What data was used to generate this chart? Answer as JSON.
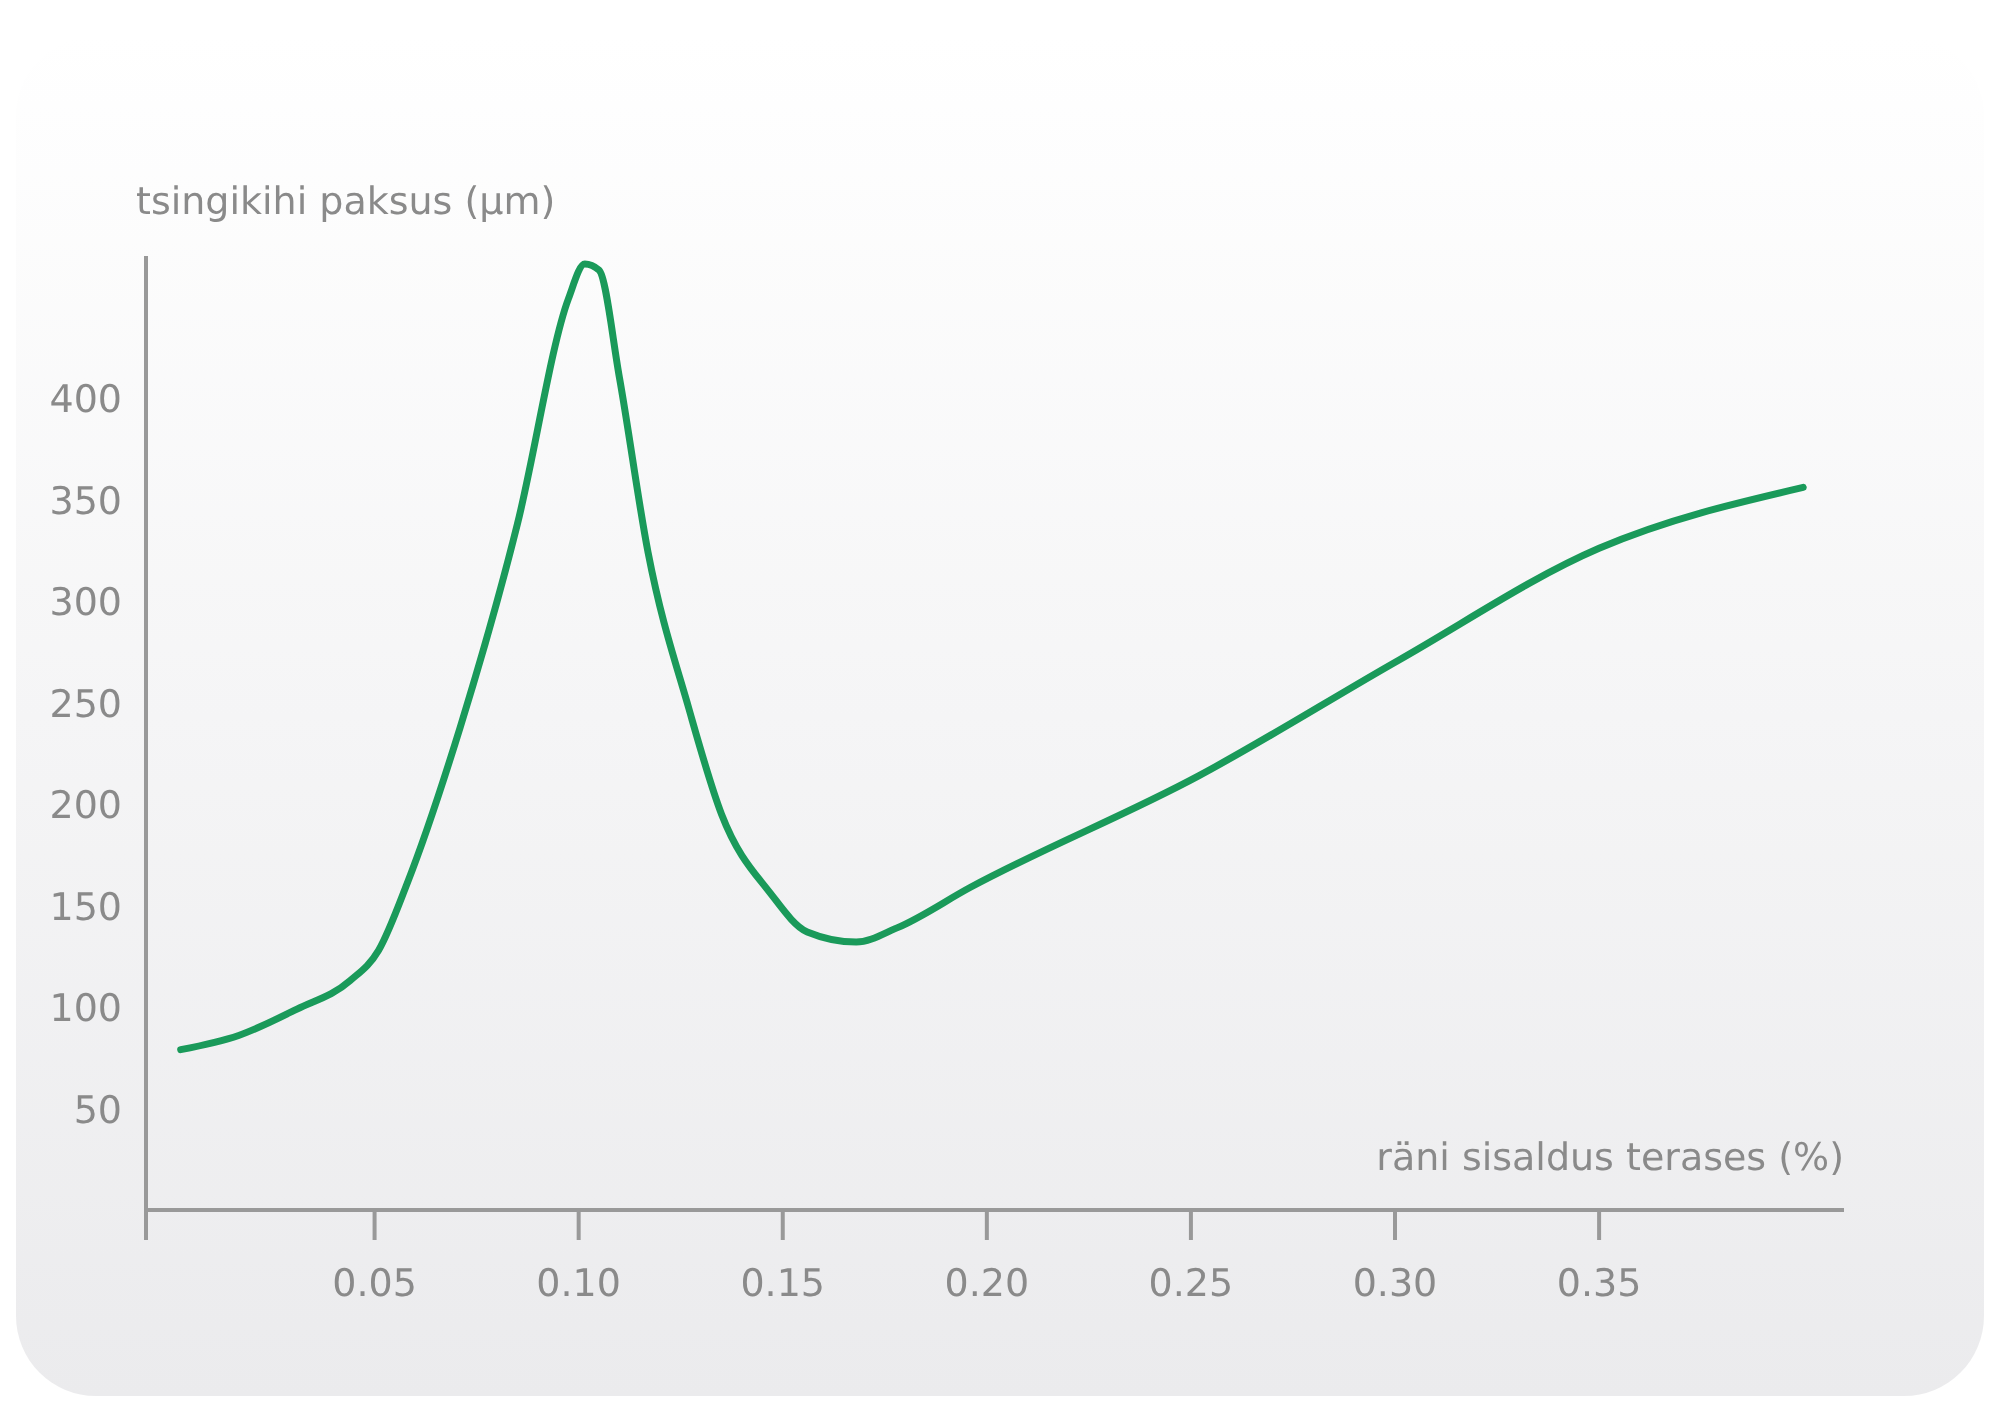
{
  "chart_data": {
    "type": "line",
    "xlabel": "räni sisaldus terases (%)",
    "ylabel": "tsingikihi paksus (µm)",
    "x": [
      0.0025,
      0.0167,
      0.031,
      0.044,
      0.051,
      0.058,
      0.071,
      0.085,
      0.0975,
      0.1015,
      0.105,
      0.11,
      0.117,
      0.127,
      0.135,
      0.147,
      0.156,
      0.168,
      0.178,
      0.196,
      0.252,
      0.301,
      0.35,
      0.4
    ],
    "series": [
      {
        "color": "#1a9a5a",
        "values": [
          79,
          86,
          99,
          113,
          128,
          161,
          238,
          338,
          449,
          466,
          463,
          410,
          324,
          247,
          195,
          156,
          137,
          132,
          139,
          159,
          214,
          271,
          326,
          356
        ]
      }
    ],
    "xlim": [
      -0.006,
      0.41
    ],
    "ylim": [
      0,
      470
    ],
    "xticks": [
      {
        "value": 0.05,
        "label": "0.05"
      },
      {
        "value": 0.1,
        "label": "0.10"
      },
      {
        "value": 0.15,
        "label": "0.15"
      },
      {
        "value": 0.2,
        "label": "0.20"
      },
      {
        "value": 0.25,
        "label": "0.25"
      },
      {
        "value": 0.3,
        "label": "0.30"
      },
      {
        "value": 0.35,
        "label": "0.35"
      }
    ],
    "yticks": [
      50,
      100,
      150,
      200,
      250,
      300,
      350,
      400
    ],
    "marker": "none",
    "line_style": "solid"
  }
}
